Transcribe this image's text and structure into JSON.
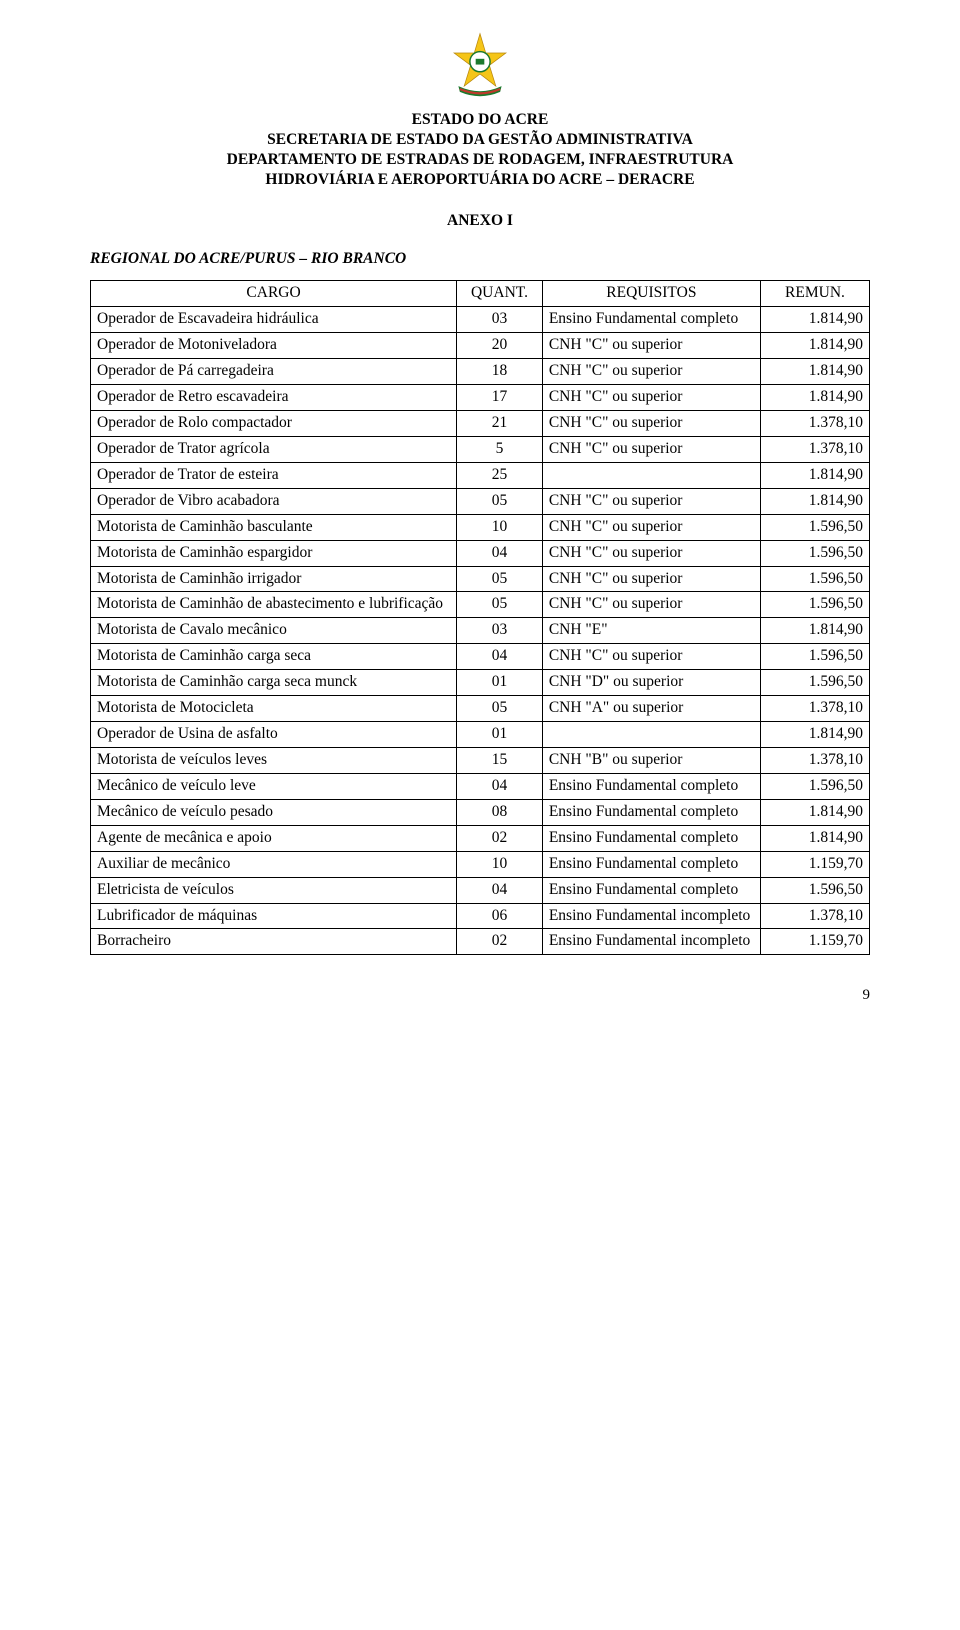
{
  "header": {
    "line1": "ESTADO DO ACRE",
    "line2": "SECRETARIA DE ESTADO DA GESTÃO ADMINISTRATIVA",
    "line3": "DEPARTAMENTO DE ESTRADAS DE RODAGEM, INFRAESTRUTURA",
    "line4": "HIDROVIÁRIA E AEROPORTUÁRIA DO ACRE – DERACRE"
  },
  "anexo": "ANEXO I",
  "regional": "REGIONAL DO ACRE/PURUS – RIO BRANCO",
  "table": {
    "columns": [
      "CARGO",
      "QUANT.",
      "REQUISITOS",
      "REMUN."
    ],
    "rows": [
      {
        "cargo": "Operador de Escavadeira hidráulica",
        "quant": "03",
        "req": "Ensino Fundamental completo",
        "rem": "1.814,90"
      },
      {
        "cargo": "Operador de Motoniveladora",
        "quant": "20",
        "req": "CNH \"C\" ou superior",
        "rem": "1.814,90"
      },
      {
        "cargo": "Operador de Pá carregadeira",
        "quant": "18",
        "req": "CNH \"C\" ou superior",
        "rem": "1.814,90"
      },
      {
        "cargo": "Operador de Retro escavadeira",
        "quant": "17",
        "req": "CNH \"C\" ou superior",
        "rem": "1.814,90"
      },
      {
        "cargo": "Operador de Rolo compactador",
        "quant": "21",
        "req": "CNH \"C\" ou superior",
        "rem": "1.378,10"
      },
      {
        "cargo": "Operador de Trator agrícola",
        "quant": "5",
        "req": "CNH \"C\" ou superior",
        "rem": "1.378,10"
      },
      {
        "cargo": "Operador de Trator de esteira",
        "quant": "25",
        "req": "",
        "rem": "1.814,90"
      },
      {
        "cargo": "Operador de Vibro acabadora",
        "quant": "05",
        "req": "CNH \"C\" ou superior",
        "rem": "1.814,90"
      },
      {
        "cargo": "Motorista de Caminhão basculante",
        "quant": "10",
        "req": "CNH \"C\" ou superior",
        "rem": "1.596,50"
      },
      {
        "cargo": "Motorista de Caminhão espargidor",
        "quant": "04",
        "req": "CNH \"C\" ou superior",
        "rem": "1.596,50"
      },
      {
        "cargo": "Motorista de Caminhão irrigador",
        "quant": "05",
        "req": "CNH \"C\" ou superior",
        "rem": "1.596,50"
      },
      {
        "cargo": "Motorista de Caminhão de abastecimento e lubrificação",
        "quant": "05",
        "req": "CNH \"C\" ou superior",
        "rem": "1.596,50"
      },
      {
        "cargo": "Motorista de Cavalo mecânico",
        "quant": "03",
        "req": "CNH \"E\"",
        "rem": "1.814,90"
      },
      {
        "cargo": "Motorista de Caminhão carga seca",
        "quant": "04",
        "req": "CNH \"C\" ou superior",
        "rem": "1.596,50"
      },
      {
        "cargo": "Motorista de Caminhão carga seca munck",
        "quant": "01",
        "req": "CNH \"D\" ou superior",
        "rem": "1.596,50"
      },
      {
        "cargo": "Motorista de Motocicleta",
        "quant": "05",
        "req": "CNH \"A\" ou superior",
        "rem": "1.378,10"
      },
      {
        "cargo": "Operador de Usina de asfalto",
        "quant": "01",
        "req": "",
        "rem": "1.814,90"
      },
      {
        "cargo": "Motorista de veículos leves",
        "quant": "15",
        "req": "CNH \"B\" ou superior",
        "rem": "1.378,10"
      },
      {
        "cargo": "Mecânico de veículo leve",
        "quant": "04",
        "req": "Ensino Fundamental completo",
        "rem": "1.596,50"
      },
      {
        "cargo": "Mecânico de veículo pesado",
        "quant": "08",
        "req": "Ensino Fundamental completo",
        "rem": "1.814,90"
      },
      {
        "cargo": "Agente de mecânica e apoio",
        "quant": "02",
        "req": "Ensino Fundamental completo",
        "rem": "1.814,90"
      },
      {
        "cargo": "Auxiliar de mecânico",
        "quant": "10",
        "req": "Ensino Fundamental completo",
        "rem": "1.159,70"
      },
      {
        "cargo": "Eletricista de veículos",
        "quant": "04",
        "req": "Ensino Fundamental completo",
        "rem": "1.596,50"
      },
      {
        "cargo": "Lubrificador de máquinas",
        "quant": "06",
        "req": "Ensino Fundamental incompleto",
        "rem": "1.378,10"
      },
      {
        "cargo": "Borracheiro",
        "quant": "02",
        "req": "Ensino Fundamental incompleto",
        "rem": "1.159,70"
      }
    ]
  },
  "page_number": "9",
  "logo_colors": {
    "star": "#f5c518",
    "ribbon_green": "#1b7a2e",
    "ribbon_red": "#c0392b",
    "circle": "#ffffff",
    "circle_ring": "#1b7a2e"
  }
}
